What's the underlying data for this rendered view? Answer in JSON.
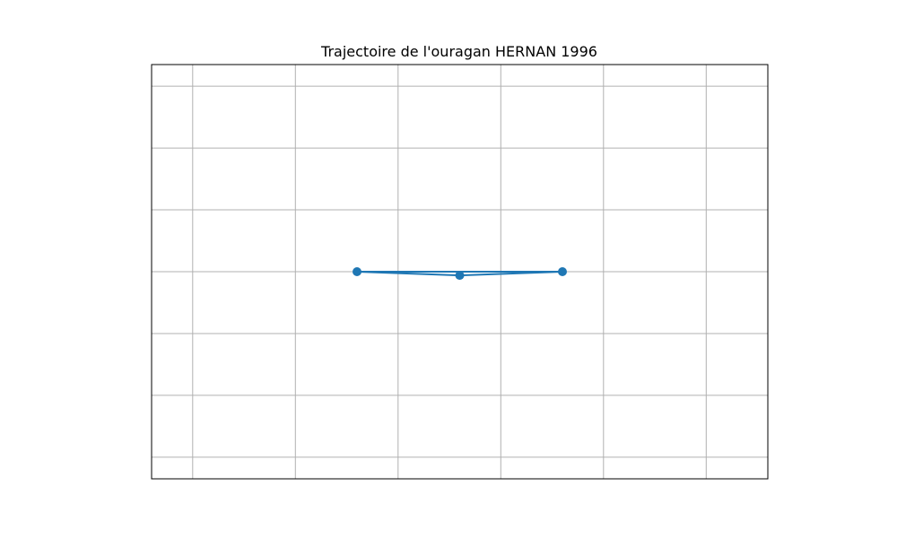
{
  "chart_data": {
    "type": "line",
    "title": "Trajectoire de l'ouragan HERNAN 1996",
    "xlabel": "",
    "ylabel": "",
    "x_ticks": [
      -1.25,
      -1.0,
      -0.75,
      -0.5,
      -0.25,
      0.0
    ],
    "y_ticks": [
      0.3,
      0.2,
      0.1,
      0.0,
      -0.1,
      -0.2,
      -0.3
    ],
    "xlim": [
      -1.35,
      0.15
    ],
    "ylim": [
      -0.335,
      0.335
    ],
    "grid": true,
    "show_tick_labels": false,
    "series": [
      {
        "points": [
          {
            "x": -0.85,
            "y": 0.0
          },
          {
            "x": -0.6,
            "y": -0.006
          },
          {
            "x": -0.35,
            "y": 0.0
          }
        ]
      }
    ],
    "closed_path": true,
    "line_color": "#1f77b4",
    "marker_color": "#1f77b4"
  }
}
